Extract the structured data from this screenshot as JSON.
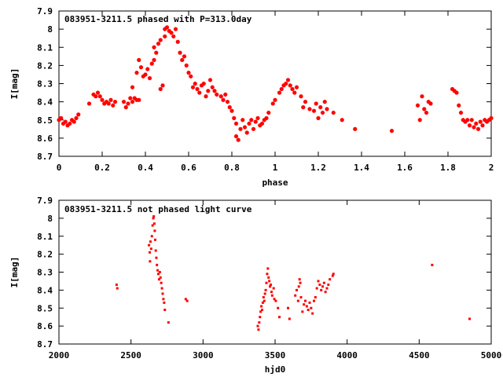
{
  "chart_data": [
    {
      "type": "scatter",
      "title": "083951-3211.5 phased with P=313.0day",
      "xlabel": "phase",
      "ylabel": "I[mag]",
      "xlim": [
        0,
        2
      ],
      "ylim": [
        8.7,
        7.9
      ],
      "y_inverted": true,
      "xticks": [
        0,
        0.2,
        0.4,
        0.6,
        0.8,
        1,
        1.2,
        1.4,
        1.6,
        1.8,
        2
      ],
      "xtick_labels": [
        "0",
        "0.2",
        "0.4",
        "0.6",
        "0.8",
        "1",
        "1.2",
        "1.4",
        "1.6",
        "1.8",
        "2"
      ],
      "yticks": [
        7.9,
        8.0,
        8.1,
        8.2,
        8.3,
        8.4,
        8.5,
        8.6,
        8.7
      ],
      "ytick_labels": [
        "7.9",
        "8",
        "8.1",
        "8.2",
        "8.3",
        "8.4",
        "8.5",
        "8.6",
        "8.7"
      ],
      "marker": "cross",
      "color": "#ff0000",
      "points": [
        [
          0.0,
          8.5
        ],
        [
          0.01,
          8.49
        ],
        [
          0.02,
          8.52
        ],
        [
          0.03,
          8.51
        ],
        [
          0.04,
          8.53
        ],
        [
          0.05,
          8.52
        ],
        [
          0.06,
          8.5
        ],
        [
          0.07,
          8.51
        ],
        [
          0.08,
          8.49
        ],
        [
          0.09,
          8.47
        ],
        [
          0.14,
          8.41
        ],
        [
          0.16,
          8.36
        ],
        [
          0.17,
          8.37
        ],
        [
          0.18,
          8.35
        ],
        [
          0.19,
          8.37
        ],
        [
          0.2,
          8.39
        ],
        [
          0.21,
          8.41
        ],
        [
          0.22,
          8.4
        ],
        [
          0.23,
          8.41
        ],
        [
          0.24,
          8.39
        ],
        [
          0.25,
          8.42
        ],
        [
          0.26,
          8.4
        ],
        [
          0.3,
          8.4
        ],
        [
          0.31,
          8.43
        ],
        [
          0.32,
          8.41
        ],
        [
          0.33,
          8.38
        ],
        [
          0.34,
          8.4
        ],
        [
          0.35,
          8.38
        ],
        [
          0.36,
          8.39
        ],
        [
          0.37,
          8.39
        ],
        [
          0.34,
          8.32
        ],
        [
          0.36,
          8.24
        ],
        [
          0.37,
          8.17
        ],
        [
          0.38,
          8.21
        ],
        [
          0.39,
          8.26
        ],
        [
          0.4,
          8.25
        ],
        [
          0.41,
          8.22
        ],
        [
          0.42,
          8.27
        ],
        [
          0.43,
          8.19
        ],
        [
          0.44,
          8.17
        ],
        [
          0.44,
          8.1
        ],
        [
          0.45,
          8.13
        ],
        [
          0.46,
          8.08
        ],
        [
          0.47,
          8.06
        ],
        [
          0.47,
          8.33
        ],
        [
          0.48,
          8.31
        ],
        [
          0.49,
          8.04
        ],
        [
          0.49,
          8.0
        ],
        [
          0.5,
          7.99
        ],
        [
          0.51,
          8.01
        ],
        [
          0.52,
          8.02
        ],
        [
          0.53,
          8.04
        ],
        [
          0.54,
          8.0
        ],
        [
          0.55,
          8.07
        ],
        [
          0.56,
          8.13
        ],
        [
          0.57,
          8.17
        ],
        [
          0.58,
          8.15
        ],
        [
          0.59,
          8.2
        ],
        [
          0.6,
          8.24
        ],
        [
          0.61,
          8.26
        ],
        [
          0.62,
          8.32
        ],
        [
          0.63,
          8.3
        ],
        [
          0.64,
          8.33
        ],
        [
          0.65,
          8.35
        ],
        [
          0.66,
          8.31
        ],
        [
          0.67,
          8.3
        ],
        [
          0.68,
          8.37
        ],
        [
          0.69,
          8.34
        ],
        [
          0.7,
          8.28
        ],
        [
          0.71,
          8.32
        ],
        [
          0.72,
          8.34
        ],
        [
          0.73,
          8.36
        ],
        [
          0.75,
          8.37
        ],
        [
          0.76,
          8.39
        ],
        [
          0.77,
          8.36
        ],
        [
          0.78,
          8.4
        ],
        [
          0.79,
          8.43
        ],
        [
          0.8,
          8.45
        ],
        [
          0.81,
          8.49
        ],
        [
          0.82,
          8.52
        ],
        [
          0.82,
          8.59
        ],
        [
          0.83,
          8.61
        ],
        [
          0.84,
          8.55
        ],
        [
          0.85,
          8.5
        ],
        [
          0.86,
          8.54
        ],
        [
          0.87,
          8.57
        ],
        [
          0.88,
          8.52
        ],
        [
          0.89,
          8.5
        ],
        [
          0.9,
          8.55
        ],
        [
          0.91,
          8.51
        ],
        [
          0.92,
          8.49
        ],
        [
          0.93,
          8.53
        ],
        [
          0.94,
          8.52
        ],
        [
          0.95,
          8.5
        ],
        [
          0.96,
          8.49
        ],
        [
          0.97,
          8.46
        ],
        [
          0.99,
          8.41
        ],
        [
          1.0,
          8.39
        ],
        [
          1.02,
          8.35
        ],
        [
          1.03,
          8.33
        ],
        [
          1.04,
          8.31
        ],
        [
          1.05,
          8.3
        ],
        [
          1.06,
          8.28
        ],
        [
          1.07,
          8.31
        ],
        [
          1.08,
          8.33
        ],
        [
          1.09,
          8.35
        ],
        [
          1.1,
          8.32
        ],
        [
          1.12,
          8.37
        ],
        [
          1.13,
          8.43
        ],
        [
          1.14,
          8.4
        ],
        [
          1.16,
          8.44
        ],
        [
          1.18,
          8.45
        ],
        [
          1.19,
          8.41
        ],
        [
          1.2,
          8.49
        ],
        [
          1.21,
          8.43
        ],
        [
          1.22,
          8.46
        ],
        [
          1.23,
          8.4
        ],
        [
          1.24,
          8.44
        ],
        [
          1.27,
          8.46
        ],
        [
          1.31,
          8.5
        ],
        [
          1.37,
          8.55
        ],
        [
          1.54,
          8.56
        ],
        [
          1.66,
          8.42
        ],
        [
          1.67,
          8.5
        ],
        [
          1.68,
          8.37
        ],
        [
          1.69,
          8.44
        ],
        [
          1.7,
          8.46
        ],
        [
          1.71,
          8.4
        ],
        [
          1.72,
          8.41
        ],
        [
          1.82,
          8.33
        ],
        [
          1.83,
          8.34
        ],
        [
          1.84,
          8.35
        ],
        [
          1.85,
          8.42
        ],
        [
          1.86,
          8.46
        ],
        [
          1.87,
          8.5
        ],
        [
          1.88,
          8.51
        ],
        [
          1.89,
          8.5
        ],
        [
          1.9,
          8.53
        ],
        [
          1.91,
          8.5
        ],
        [
          1.92,
          8.54
        ],
        [
          1.93,
          8.52
        ],
        [
          1.94,
          8.55
        ],
        [
          1.95,
          8.51
        ],
        [
          1.96,
          8.53
        ],
        [
          1.97,
          8.5
        ],
        [
          1.98,
          8.51
        ],
        [
          1.99,
          8.5
        ],
        [
          2.0,
          8.49
        ]
      ]
    },
    {
      "type": "scatter",
      "title": "083951-3211.5 not phased light curve",
      "xlabel": "hjd0",
      "ylabel": "I[mag]",
      "xlim": [
        2000,
        5000
      ],
      "ylim": [
        8.7,
        7.9
      ],
      "y_inverted": true,
      "xticks": [
        2000,
        2500,
        3000,
        3500,
        4000,
        4500,
        5000
      ],
      "xtick_labels": [
        "2000",
        "2500",
        "3000",
        "3500",
        "4000",
        "4500",
        "5000"
      ],
      "yticks": [
        7.9,
        8.0,
        8.1,
        8.2,
        8.3,
        8.4,
        8.5,
        8.6,
        8.7
      ],
      "ytick_labels": [
        "7.9",
        "8",
        "8.1",
        "8.2",
        "8.3",
        "8.4",
        "8.5",
        "8.6",
        "8.7"
      ],
      "marker": "dot",
      "color": "#ff0000",
      "points": [
        [
          2400,
          8.37
        ],
        [
          2405,
          8.39
        ],
        [
          2625,
          8.15
        ],
        [
          2630,
          8.19
        ],
        [
          2632,
          8.24
        ],
        [
          2635,
          8.13
        ],
        [
          2640,
          8.17
        ],
        [
          2645,
          8.1
        ],
        [
          2650,
          8.04
        ],
        [
          2655,
          8.0
        ],
        [
          2658,
          7.99
        ],
        [
          2662,
          8.03
        ],
        [
          2665,
          8.07
        ],
        [
          2668,
          8.12
        ],
        [
          2672,
          8.18
        ],
        [
          2676,
          8.22
        ],
        [
          2680,
          8.26
        ],
        [
          2685,
          8.29
        ],
        [
          2690,
          8.31
        ],
        [
          2695,
          8.34
        ],
        [
          2700,
          8.3
        ],
        [
          2705,
          8.33
        ],
        [
          2710,
          8.36
        ],
        [
          2715,
          8.39
        ],
        [
          2720,
          8.42
        ],
        [
          2725,
          8.45
        ],
        [
          2730,
          8.47
        ],
        [
          2735,
          8.51
        ],
        [
          2760,
          8.58
        ],
        [
          2880,
          8.45
        ],
        [
          2890,
          8.46
        ],
        [
          3380,
          8.6
        ],
        [
          3385,
          8.62
        ],
        [
          3390,
          8.58
        ],
        [
          3395,
          8.55
        ],
        [
          3400,
          8.52
        ],
        [
          3405,
          8.49
        ],
        [
          3410,
          8.51
        ],
        [
          3415,
          8.47
        ],
        [
          3420,
          8.44
        ],
        [
          3425,
          8.46
        ],
        [
          3430,
          8.42
        ],
        [
          3435,
          8.4
        ],
        [
          3440,
          8.36
        ],
        [
          3445,
          8.31
        ],
        [
          3450,
          8.28
        ],
        [
          3455,
          8.33
        ],
        [
          3460,
          8.35
        ],
        [
          3465,
          8.38
        ],
        [
          3470,
          8.37
        ],
        [
          3475,
          8.41
        ],
        [
          3480,
          8.43
        ],
        [
          3490,
          8.39
        ],
        [
          3495,
          8.45
        ],
        [
          3505,
          8.46
        ],
        [
          3520,
          8.5
        ],
        [
          3530,
          8.55
        ],
        [
          3590,
          8.5
        ],
        [
          3600,
          8.56
        ],
        [
          3640,
          8.43
        ],
        [
          3650,
          8.4
        ],
        [
          3660,
          8.46
        ],
        [
          3665,
          8.38
        ],
        [
          3670,
          8.34
        ],
        [
          3675,
          8.36
        ],
        [
          3680,
          8.44
        ],
        [
          3690,
          8.52
        ],
        [
          3700,
          8.48
        ],
        [
          3710,
          8.46
        ],
        [
          3720,
          8.49
        ],
        [
          3730,
          8.51
        ],
        [
          3740,
          8.47
        ],
        [
          3750,
          8.5
        ],
        [
          3760,
          8.53
        ],
        [
          3770,
          8.46
        ],
        [
          3780,
          8.44
        ],
        [
          3790,
          8.39
        ],
        [
          3800,
          8.35
        ],
        [
          3810,
          8.37
        ],
        [
          3820,
          8.4
        ],
        [
          3830,
          8.38
        ],
        [
          3840,
          8.36
        ],
        [
          3850,
          8.41
        ],
        [
          3860,
          8.39
        ],
        [
          3870,
          8.37
        ],
        [
          3880,
          8.34
        ],
        [
          3900,
          8.32
        ],
        [
          3905,
          8.31
        ],
        [
          4590,
          8.26
        ],
        [
          4850,
          8.56
        ]
      ]
    }
  ]
}
